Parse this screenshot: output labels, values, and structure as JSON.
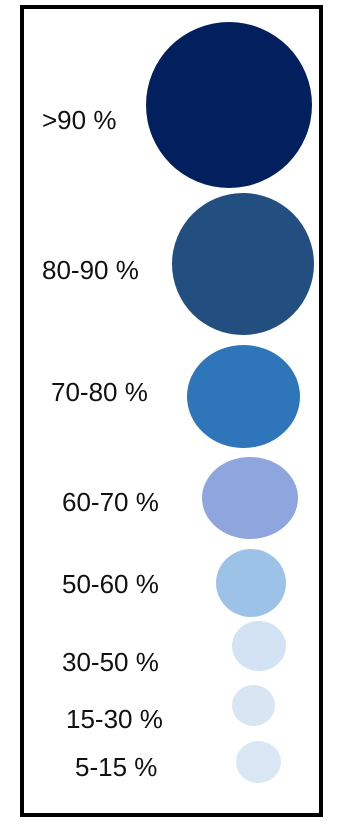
{
  "legend": {
    "items": [
      {
        "label": ">90 %",
        "color": "#03205e"
      },
      {
        "label": "80-90 %",
        "color": "#224f7f"
      },
      {
        "label": "70-80 %",
        "color": "#2e75b9"
      },
      {
        "label": "60-70 %",
        "color": "#8ea6dd"
      },
      {
        "label": "50-60 %",
        "color": "#9dc2e8"
      },
      {
        "label": "30-50 %",
        "color": "#d4e3f3"
      },
      {
        "label": "15-30 %",
        "color": "#d8e6f4"
      },
      {
        "label": "5-15 %",
        "color": "#d9e7f5"
      }
    ]
  }
}
